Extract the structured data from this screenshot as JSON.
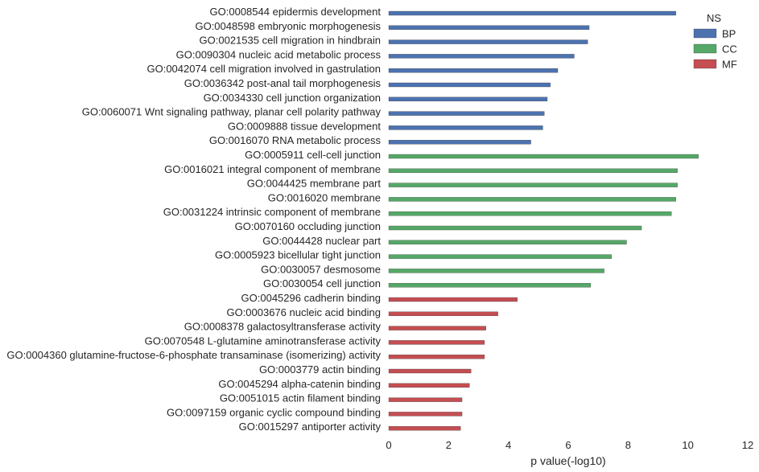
{
  "chart_data": {
    "type": "bar",
    "orientation": "horizontal",
    "xlabel": "p value(-log10)",
    "ylabel": "",
    "xlim": [
      0,
      12
    ],
    "xticks": [
      "0",
      "2",
      "4",
      "6",
      "8",
      "10",
      "12"
    ],
    "grid": false,
    "legend": {
      "title": "NS",
      "placement": "top-right",
      "entries": [
        {
          "name": "BP",
          "color": "#4c72b0"
        },
        {
          "name": "CC",
          "color": "#55a868"
        },
        {
          "name": "MF",
          "color": "#c44e52"
        }
      ]
    },
    "bars": [
      {
        "label": "GO:0008544 epidermis development",
        "value": 9.6,
        "ns": "BP"
      },
      {
        "label": "GO:0048598 embryonic morphogenesis",
        "value": 6.7,
        "ns": "BP"
      },
      {
        "label": "GO:0021535 cell migration in hindbrain",
        "value": 6.65,
        "ns": "BP"
      },
      {
        "label": "GO:0090304 nucleic acid metabolic process",
        "value": 6.2,
        "ns": "BP"
      },
      {
        "label": "GO:0042074 cell migration involved in gastrulation",
        "value": 5.65,
        "ns": "BP"
      },
      {
        "label": "GO:0036342 post-anal tail morphogenesis",
        "value": 5.4,
        "ns": "BP"
      },
      {
        "label": "GO:0034330 cell junction organization",
        "value": 5.3,
        "ns": "BP"
      },
      {
        "label": "GO:0060071 Wnt signaling pathway, planar cell polarity pathway",
        "value": 5.2,
        "ns": "BP"
      },
      {
        "label": "GO:0009888 tissue development",
        "value": 5.15,
        "ns": "BP"
      },
      {
        "label": "GO:0016070 RNA metabolic process",
        "value": 4.75,
        "ns": "BP"
      },
      {
        "label": "GO:0005911 cell-cell junction",
        "value": 10.35,
        "ns": "CC"
      },
      {
        "label": "GO:0016021 integral component of membrane",
        "value": 9.65,
        "ns": "CC"
      },
      {
        "label": "GO:0044425 membrane part",
        "value": 9.65,
        "ns": "CC"
      },
      {
        "label": "GO:0016020 membrane",
        "value": 9.6,
        "ns": "CC"
      },
      {
        "label": "GO:0031224 intrinsic component of membrane",
        "value": 9.45,
        "ns": "CC"
      },
      {
        "label": "GO:0070160 occluding junction",
        "value": 8.45,
        "ns": "CC"
      },
      {
        "label": "GO:0044428 nuclear part",
        "value": 7.95,
        "ns": "CC"
      },
      {
        "label": "GO:0005923 bicellular tight junction",
        "value": 7.45,
        "ns": "CC"
      },
      {
        "label": "GO:0030057 desmosome",
        "value": 7.2,
        "ns": "CC"
      },
      {
        "label": "GO:0030054 cell junction",
        "value": 6.75,
        "ns": "CC"
      },
      {
        "label": "GO:0045296 cadherin binding",
        "value": 4.3,
        "ns": "MF"
      },
      {
        "label": "GO:0003676 nucleic acid binding",
        "value": 3.65,
        "ns": "MF"
      },
      {
        "label": "GO:0008378 galactosyltransferase activity",
        "value": 3.25,
        "ns": "MF"
      },
      {
        "label": "GO:0070548 L-glutamine aminotransferase activity",
        "value": 3.2,
        "ns": "MF"
      },
      {
        "label": "GO:0004360 glutamine-fructose-6-phosphate transaminase (isomerizing) activity",
        "value": 3.2,
        "ns": "MF"
      },
      {
        "label": "GO:0003779 actin binding",
        "value": 2.75,
        "ns": "MF"
      },
      {
        "label": "GO:0045294 alpha-catenin binding",
        "value": 2.7,
        "ns": "MF"
      },
      {
        "label": "GO:0051015 actin filament binding",
        "value": 2.45,
        "ns": "MF"
      },
      {
        "label": "GO:0097159 organic cyclic compound binding",
        "value": 2.45,
        "ns": "MF"
      },
      {
        "label": "GO:0015297 antiporter activity",
        "value": 2.4,
        "ns": "MF"
      }
    ]
  }
}
